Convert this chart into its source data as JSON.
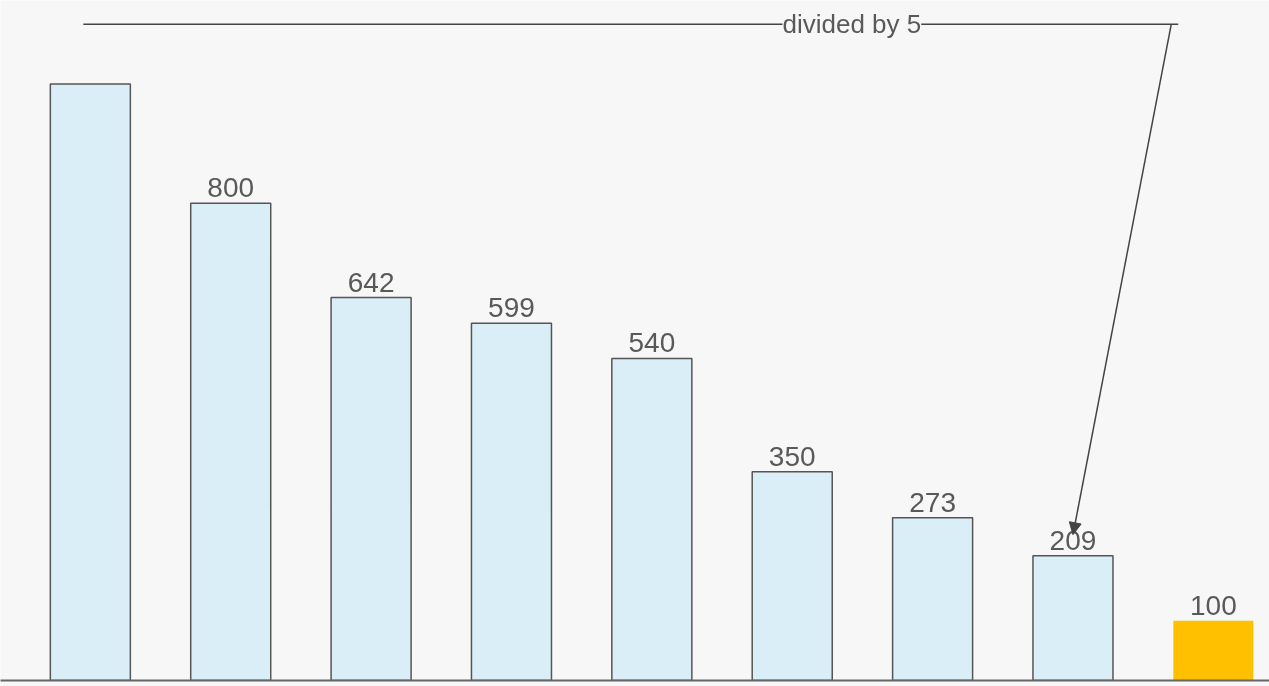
{
  "chart_data": {
    "type": "bar",
    "categories": [
      null,
      null,
      null,
      null,
      null,
      null,
      null,
      null,
      null
    ],
    "values": [
      1000,
      800,
      642,
      599,
      540,
      350,
      273,
      209,
      100
    ],
    "colors": [
      "#daeef8",
      "#daeef8",
      "#daeef8",
      "#daeef8",
      "#daeef8",
      "#daeef8",
      "#daeef8",
      "#daeef8",
      "#ffc000"
    ],
    "value_labels": [
      null,
      "800",
      "642",
      "599",
      "540",
      "350",
      "273",
      "209",
      "100"
    ],
    "annotations": [
      "divided by 5"
    ],
    "grid": false
  }
}
